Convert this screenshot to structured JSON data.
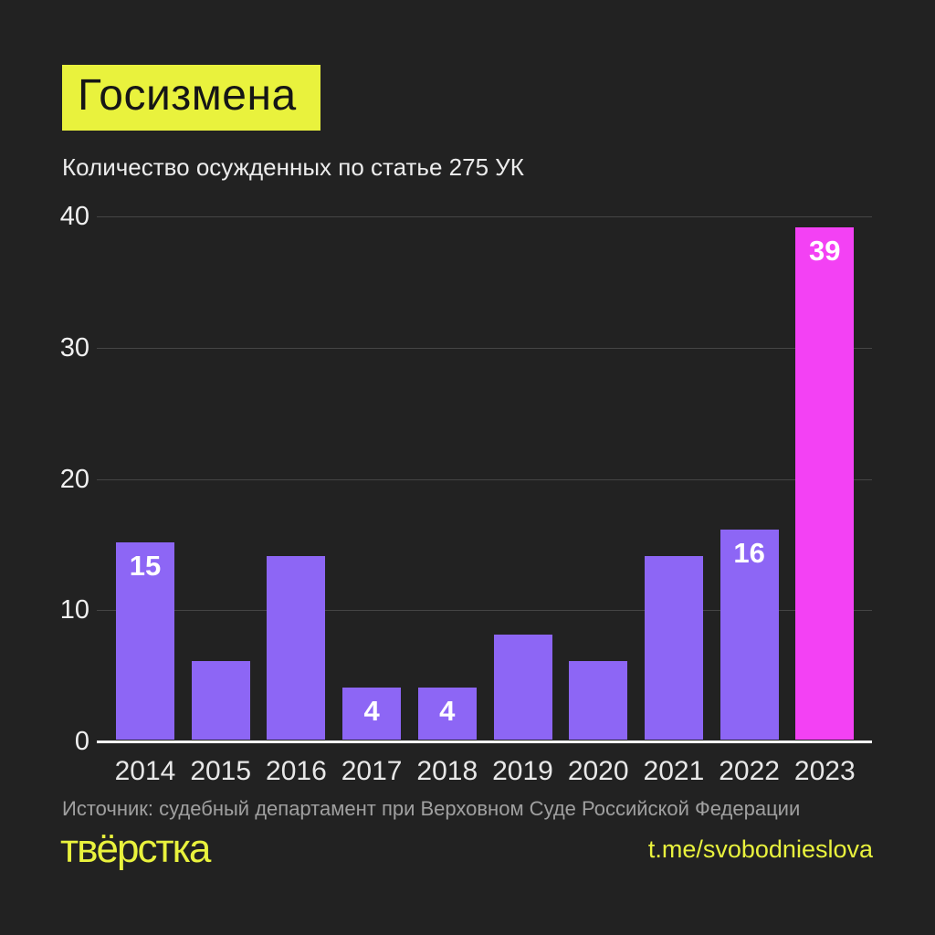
{
  "page": {
    "title": "Госизмена",
    "subtitle": "Количество осужденных по статье 275 УК",
    "source": "Источник: судебный департамент при Верховном Суде Российской Федерации",
    "logo": "твёрстка",
    "telegram": "t.me/svobodnieslova",
    "background": "#222222",
    "accent_yellow": "#e9f23d"
  },
  "chart_data": {
    "type": "bar",
    "title": "Количество осужденных по статье 275 УК",
    "categories": [
      "2014",
      "2015",
      "2016",
      "2017",
      "2018",
      "2019",
      "2020",
      "2021",
      "2022",
      "2023"
    ],
    "values": [
      15,
      6,
      14,
      4,
      4,
      8,
      6,
      14,
      16,
      39
    ],
    "bar_value_labels": [
      "15",
      "",
      "",
      "4",
      "4",
      "",
      "",
      "",
      "16",
      "39"
    ],
    "yticks": [
      0,
      10,
      20,
      30,
      40
    ],
    "ylim": [
      0,
      40
    ],
    "grid": true,
    "legend": "none",
    "xlabel": "",
    "ylabel": "",
    "bar_color": "#8d66f5",
    "highlight_color": "#f341f4",
    "highlight_category": "2023",
    "label_color": "#ffffff",
    "axis_text_color": "#f0f0f0",
    "gridline_color": "#454545",
    "baseline_color": "#ffffff"
  }
}
